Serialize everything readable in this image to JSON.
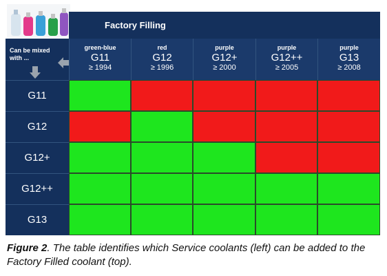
{
  "table": {
    "title": "Factory Filling",
    "mix_label": "Can be mixed with ...",
    "columns": [
      {
        "name": "green-blue",
        "code": "G11",
        "year": "≥ 1994"
      },
      {
        "name": "red",
        "code": "G12",
        "year": "≥ 1996"
      },
      {
        "name": "purple",
        "code": "G12+",
        "year": "≥ 2000"
      },
      {
        "name": "purple",
        "code": "G12++",
        "year": "≥ 2005"
      },
      {
        "name": "purple",
        "code": "G13",
        "year": "≥ 2008"
      }
    ],
    "rows": [
      "G11",
      "G12",
      "G12+",
      "G12++",
      "G13"
    ],
    "compatibility": [
      [
        true,
        false,
        false,
        false,
        false
      ],
      [
        false,
        true,
        false,
        false,
        false
      ],
      [
        true,
        true,
        true,
        false,
        false
      ],
      [
        true,
        true,
        true,
        true,
        true
      ],
      [
        true,
        true,
        true,
        true,
        true
      ]
    ],
    "colors": {
      "compatible": "#1ee61e",
      "incompatible": "#f11a1a",
      "header": "#14305c"
    }
  },
  "caption": {
    "label": "Figure 2",
    "text": ". The table identifies which Service coolants (left) can be added to the Factory Filled coolant (top)."
  }
}
